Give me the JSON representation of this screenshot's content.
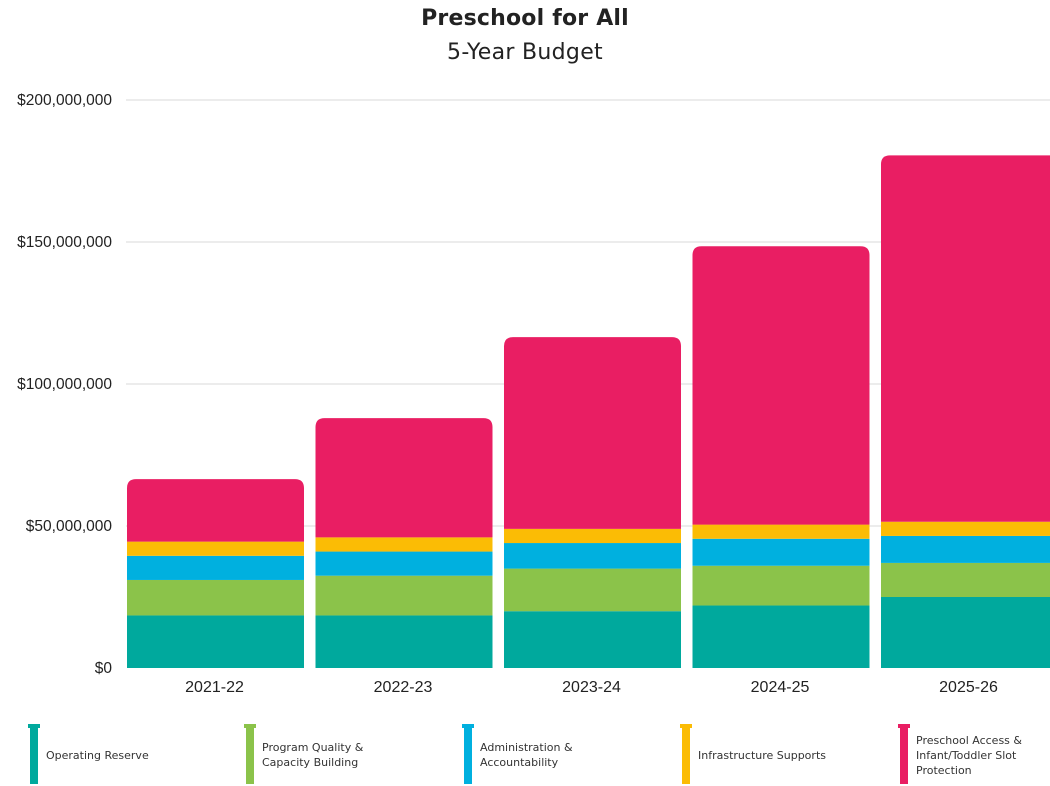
{
  "chart_data": {
    "type": "bar",
    "stacked": true,
    "title": "Preschool for All",
    "subtitle": "5-Year Budget",
    "categories": [
      "2021-22",
      "2022-23",
      "2023-24",
      "2024-25",
      "2025-26"
    ],
    "series": [
      {
        "name": "Operating Reserve",
        "color": "#00a99d",
        "values": [
          18500000,
          18500000,
          20000000,
          22000000,
          25000000
        ]
      },
      {
        "name": "Program Quality & Capacity Building",
        "color": "#8bc34a",
        "values": [
          12500000,
          14000000,
          15000000,
          14000000,
          12000000
        ]
      },
      {
        "name": "Administration & Accountability",
        "color": "#00b0df",
        "values": [
          8500000,
          8500000,
          9000000,
          9500000,
          9500000
        ]
      },
      {
        "name": "Infrastructure Supports",
        "color": "#fbbc05",
        "values": [
          5000000,
          5000000,
          5000000,
          5000000,
          5000000
        ]
      },
      {
        "name": "Preschool Access & Infant/Toddler Slot Protection",
        "color": "#e91e63",
        "values": [
          22000000,
          42000000,
          67500000,
          98000000,
          129000000
        ]
      }
    ],
    "ylim": [
      0,
      200000000
    ],
    "yticks": [
      0,
      50000000,
      100000000,
      150000000,
      200000000
    ],
    "ytick_labels": [
      "$0",
      "$50,000,000",
      "$100,000,000",
      "$150,000,000",
      "$200,000,000"
    ],
    "xlabel": "",
    "ylabel": "",
    "grid": true,
    "legend_position": "bottom"
  },
  "legend": {
    "items": [
      {
        "line1": "Operating Reserve",
        "line2": "",
        "line3": ""
      },
      {
        "line1": "Program Quality &",
        "line2": "Capacity Building",
        "line3": ""
      },
      {
        "line1": "Administration &",
        "line2": "Accountability",
        "line3": ""
      },
      {
        "line1": "Infrastructure Supports",
        "line2": "",
        "line3": ""
      },
      {
        "line1": "Preschool Access &",
        "line2": "Infant/Toddler Slot",
        "line3": "Protection"
      }
    ]
  }
}
